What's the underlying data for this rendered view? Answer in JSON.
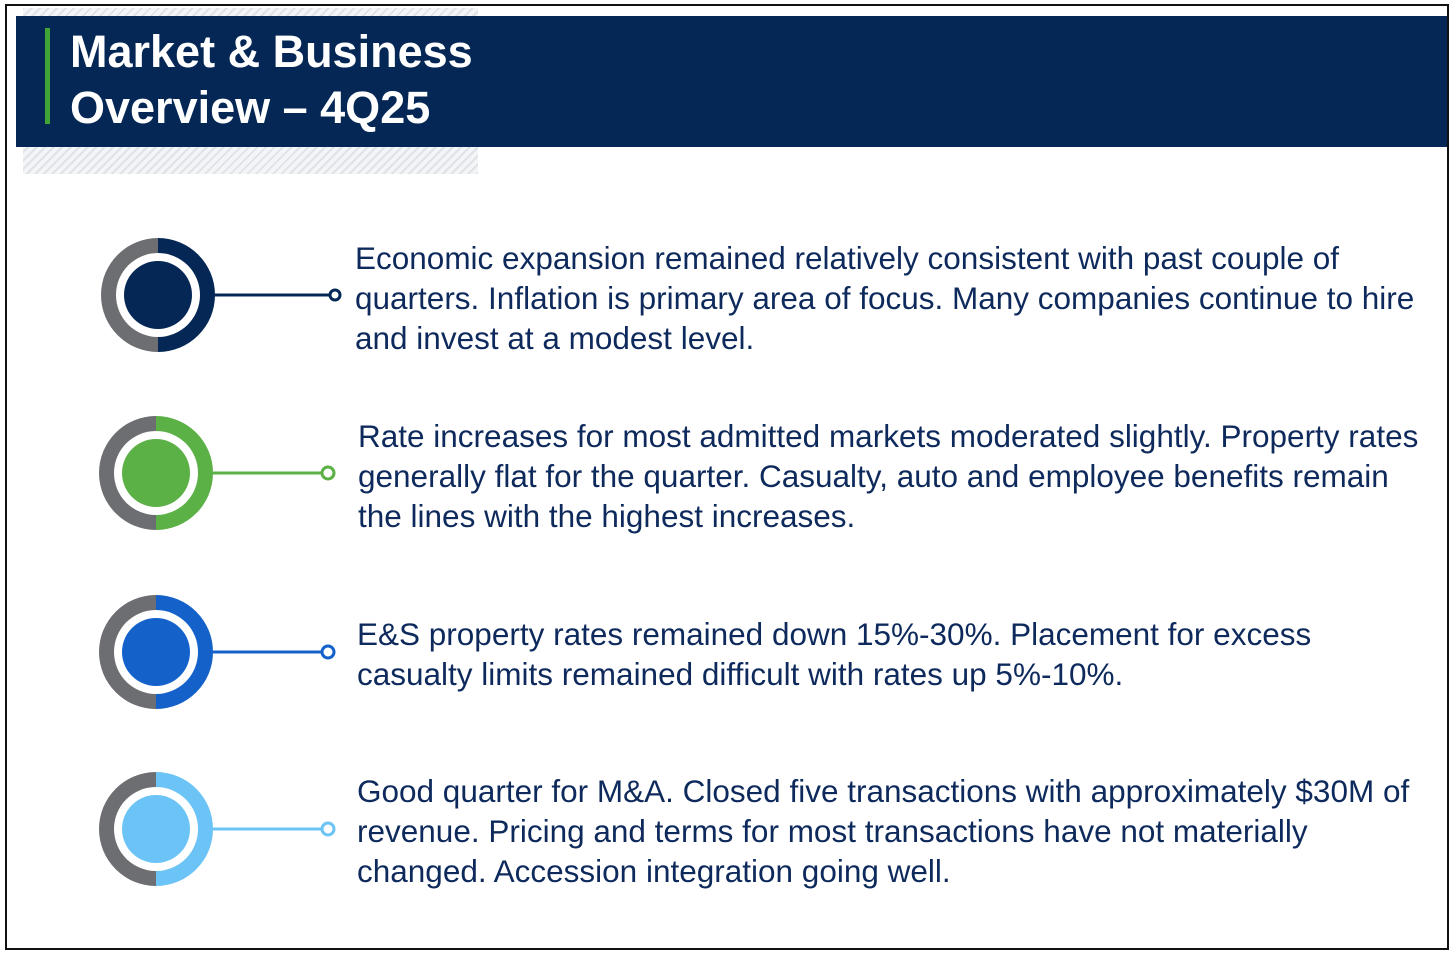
{
  "header": {
    "title": "Market & Business\nOverview – 4Q25"
  },
  "items": [
    {
      "text": "Economic expansion remained relatively consistent with past couple of quarters. Inflation is primary area of focus.  Many companies continue to hire and invest at a modest level.",
      "color": "#052755",
      "icon": "navy-target-icon"
    },
    {
      "text": "Rate increases for most admitted markets moderated slightly.  Property rates generally flat for the quarter.  Casualty, auto and employee benefits remain the lines with the highest increases.",
      "color": "#5bb046",
      "icon": "green-target-icon"
    },
    {
      "text": "E&S property rates remained down 15%-30%.  Placement for excess casualty limits remained difficult with rates up 5%-10%.",
      "color": "#1462c9",
      "icon": "blue-target-icon"
    },
    {
      "text": "Good quarter for M&A.  Closed five transactions with approximately $30M of revenue.  Pricing and terms for most transactions have not materially changed.  Accession integration going well.",
      "color": "#6cc4f6",
      "icon": "light-blue-target-icon"
    }
  ],
  "theme": {
    "header_bg": "#052755",
    "accent_green": "#3fa535",
    "ring_gray": "#6d6e71",
    "text_color": "#0e2a5c"
  }
}
